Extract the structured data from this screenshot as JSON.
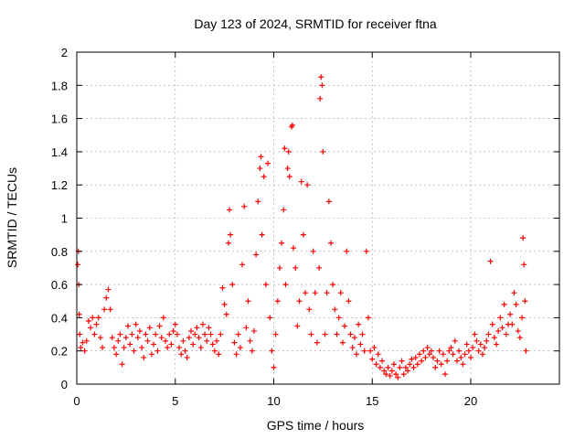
{
  "chart_data": {
    "type": "scatter",
    "title": "Day 123 of 2024, SRMTID for receiver ftna",
    "xlabel": "GPS time / hours",
    "ylabel": "SRMTID / TECUs",
    "xlim": [
      0,
      24.5
    ],
    "ylim": [
      0,
      2
    ],
    "xticks": [
      0,
      5,
      10,
      15,
      20
    ],
    "yticks": [
      0,
      0.2,
      0.4,
      0.6,
      0.8,
      1,
      1.2,
      1.4,
      1.6,
      1.8,
      2
    ],
    "ytick_labels": [
      "0",
      "0.2",
      "0.4",
      "0.6",
      "0.8",
      "1",
      "1.2",
      "1.4",
      "1.6",
      "1.8",
      "2"
    ],
    "grid": true,
    "marker": "+",
    "color": "#ff0000",
    "series": [
      {
        "name": "SRMTID",
        "points": [
          [
            0.05,
            0.72
          ],
          [
            0.08,
            0.8
          ],
          [
            0.1,
            0.6
          ],
          [
            0.12,
            0.42
          ],
          [
            0.15,
            0.3
          ],
          [
            0.2,
            0.22
          ],
          [
            0.3,
            0.25
          ],
          [
            0.4,
            0.2
          ],
          [
            0.5,
            0.26
          ],
          [
            0.6,
            0.38
          ],
          [
            0.7,
            0.34
          ],
          [
            0.8,
            0.4
          ],
          [
            0.9,
            0.3
          ],
          [
            1.0,
            0.36
          ],
          [
            1.1,
            0.4
          ],
          [
            1.2,
            0.28
          ],
          [
            1.3,
            0.22
          ],
          [
            1.4,
            0.45
          ],
          [
            1.5,
            0.52
          ],
          [
            1.6,
            0.57
          ],
          [
            1.7,
            0.45
          ],
          [
            1.8,
            0.28
          ],
          [
            1.9,
            0.22
          ],
          [
            2.0,
            0.18
          ],
          [
            2.1,
            0.26
          ],
          [
            2.2,
            0.3
          ],
          [
            2.3,
            0.12
          ],
          [
            2.4,
            0.22
          ],
          [
            2.5,
            0.28
          ],
          [
            2.6,
            0.35
          ],
          [
            2.7,
            0.24
          ],
          [
            2.8,
            0.3
          ],
          [
            2.9,
            0.2
          ],
          [
            3.0,
            0.36
          ],
          [
            3.1,
            0.28
          ],
          [
            3.2,
            0.32
          ],
          [
            3.3,
            0.22
          ],
          [
            3.4,
            0.16
          ],
          [
            3.5,
            0.3
          ],
          [
            3.6,
            0.26
          ],
          [
            3.7,
            0.34
          ],
          [
            3.8,
            0.18
          ],
          [
            3.9,
            0.24
          ],
          [
            4.0,
            0.3
          ],
          [
            4.1,
            0.2
          ],
          [
            4.2,
            0.35
          ],
          [
            4.3,
            0.28
          ],
          [
            4.4,
            0.4
          ],
          [
            4.5,
            0.26
          ],
          [
            4.6,
            0.22
          ],
          [
            4.7,
            0.3
          ],
          [
            4.8,
            0.24
          ],
          [
            4.9,
            0.32
          ],
          [
            5.0,
            0.36
          ],
          [
            5.1,
            0.3
          ],
          [
            5.2,
            0.22
          ],
          [
            5.3,
            0.18
          ],
          [
            5.4,
            0.26
          ],
          [
            5.5,
            0.2
          ],
          [
            5.6,
            0.16
          ],
          [
            5.7,
            0.28
          ],
          [
            5.8,
            0.32
          ],
          [
            5.9,
            0.24
          ],
          [
            6.0,
            0.3
          ],
          [
            6.1,
            0.34
          ],
          [
            6.2,
            0.28
          ],
          [
            6.3,
            0.22
          ],
          [
            6.4,
            0.36
          ],
          [
            6.5,
            0.3
          ],
          [
            6.6,
            0.26
          ],
          [
            6.7,
            0.34
          ],
          [
            6.8,
            0.3
          ],
          [
            6.9,
            0.24
          ],
          [
            7.0,
            0.2
          ],
          [
            7.1,
            0.26
          ],
          [
            7.2,
            0.18
          ],
          [
            7.3,
            0.3
          ],
          [
            7.4,
            0.58
          ],
          [
            7.5,
            0.48
          ],
          [
            7.6,
            0.42
          ],
          [
            7.7,
            0.85
          ],
          [
            7.75,
            1.05
          ],
          [
            7.8,
            0.9
          ],
          [
            7.9,
            0.6
          ],
          [
            8.0,
            0.25
          ],
          [
            8.1,
            0.18
          ],
          [
            8.2,
            0.3
          ],
          [
            8.3,
            0.22
          ],
          [
            8.4,
            0.72
          ],
          [
            8.5,
            1.07
          ],
          [
            8.6,
            0.34
          ],
          [
            8.7,
            0.5
          ],
          [
            8.8,
            0.26
          ],
          [
            8.9,
            0.2
          ],
          [
            9.0,
            0.32
          ],
          [
            9.1,
            0.78
          ],
          [
            9.2,
            1.1
          ],
          [
            9.3,
            1.3
          ],
          [
            9.35,
            1.37
          ],
          [
            9.4,
            0.9
          ],
          [
            9.5,
            1.25
          ],
          [
            9.6,
            0.6
          ],
          [
            9.7,
            1.33
          ],
          [
            9.8,
            0.4
          ],
          [
            9.9,
            0.2
          ],
          [
            10.0,
            0.1
          ],
          [
            10.1,
            0.3
          ],
          [
            10.2,
            0.5
          ],
          [
            10.3,
            0.7
          ],
          [
            10.4,
            0.85
          ],
          [
            10.5,
            1.05
          ],
          [
            10.55,
            1.42
          ],
          [
            10.6,
            0.6
          ],
          [
            10.7,
            1.3
          ],
          [
            10.75,
            1.4
          ],
          [
            10.8,
            1.25
          ],
          [
            10.9,
            1.55
          ],
          [
            10.95,
            1.56
          ],
          [
            11.0,
            0.82
          ],
          [
            11.1,
            0.7
          ],
          [
            11.2,
            0.35
          ],
          [
            11.3,
            0.5
          ],
          [
            11.4,
            1.22
          ],
          [
            11.5,
            0.9
          ],
          [
            11.6,
            0.55
          ],
          [
            11.7,
            1.2
          ],
          [
            11.8,
            0.45
          ],
          [
            11.9,
            0.3
          ],
          [
            12.0,
            0.8
          ],
          [
            12.1,
            0.55
          ],
          [
            12.2,
            0.25
          ],
          [
            12.3,
            0.7
          ],
          [
            12.35,
            1.72
          ],
          [
            12.4,
            1.85
          ],
          [
            12.45,
            1.8
          ],
          [
            12.5,
            1.4
          ],
          [
            12.6,
            0.3
          ],
          [
            12.7,
            0.55
          ],
          [
            12.8,
            1.1
          ],
          [
            12.9,
            0.85
          ],
          [
            13.0,
            0.6
          ],
          [
            13.1,
            0.45
          ],
          [
            13.2,
            0.3
          ],
          [
            13.3,
            0.4
          ],
          [
            13.4,
            0.55
          ],
          [
            13.5,
            0.25
          ],
          [
            13.6,
            0.35
          ],
          [
            13.7,
            0.8
          ],
          [
            13.8,
            0.5
          ],
          [
            13.9,
            0.3
          ],
          [
            14.0,
            0.22
          ],
          [
            14.1,
            0.28
          ],
          [
            14.2,
            0.18
          ],
          [
            14.3,
            0.36
          ],
          [
            14.4,
            0.24
          ],
          [
            14.5,
            0.3
          ],
          [
            14.6,
            0.2
          ],
          [
            14.7,
            0.8
          ],
          [
            14.8,
            0.4
          ],
          [
            14.9,
            0.2
          ],
          [
            15.0,
            0.15
          ],
          [
            15.1,
            0.22
          ],
          [
            15.2,
            0.12
          ],
          [
            15.3,
            0.18
          ],
          [
            15.4,
            0.1
          ],
          [
            15.5,
            0.14
          ],
          [
            15.6,
            0.08
          ],
          [
            15.7,
            0.06
          ],
          [
            15.8,
            0.1
          ],
          [
            15.9,
            0.05
          ],
          [
            16.0,
            0.08
          ],
          [
            16.1,
            0.12
          ],
          [
            16.2,
            0.06
          ],
          [
            16.3,
            0.04
          ],
          [
            16.4,
            0.1
          ],
          [
            16.5,
            0.14
          ],
          [
            16.6,
            0.06
          ],
          [
            16.7,
            0.1
          ],
          [
            16.8,
            0.08
          ],
          [
            16.9,
            0.12
          ],
          [
            17.0,
            0.15
          ],
          [
            17.1,
            0.1
          ],
          [
            17.2,
            0.16
          ],
          [
            17.3,
            0.12
          ],
          [
            17.4,
            0.18
          ],
          [
            17.5,
            0.14
          ],
          [
            17.6,
            0.2
          ],
          [
            17.7,
            0.16
          ],
          [
            17.8,
            0.22
          ],
          [
            17.9,
            0.18
          ],
          [
            18.0,
            0.2
          ],
          [
            18.1,
            0.16
          ],
          [
            18.2,
            0.1
          ],
          [
            18.3,
            0.14
          ],
          [
            18.4,
            0.2
          ],
          [
            18.5,
            0.12
          ],
          [
            18.6,
            0.18
          ],
          [
            18.7,
            0.06
          ],
          [
            18.8,
            0.14
          ],
          [
            18.9,
            0.2
          ],
          [
            19.0,
            0.22
          ],
          [
            19.1,
            0.18
          ],
          [
            19.2,
            0.26
          ],
          [
            19.3,
            0.14
          ],
          [
            19.4,
            0.2
          ],
          [
            19.5,
            0.16
          ],
          [
            19.6,
            0.12
          ],
          [
            19.7,
            0.18
          ],
          [
            19.8,
            0.24
          ],
          [
            19.9,
            0.2
          ],
          [
            20.0,
            0.16
          ],
          [
            20.1,
            0.22
          ],
          [
            20.2,
            0.3
          ],
          [
            20.3,
            0.26
          ],
          [
            20.4,
            0.2
          ],
          [
            20.5,
            0.24
          ],
          [
            20.6,
            0.18
          ],
          [
            20.7,
            0.22
          ],
          [
            20.8,
            0.26
          ],
          [
            20.9,
            0.3
          ],
          [
            21.0,
            0.74
          ],
          [
            21.1,
            0.36
          ],
          [
            21.2,
            0.28
          ],
          [
            21.3,
            0.24
          ],
          [
            21.4,
            0.32
          ],
          [
            21.5,
            0.4
          ],
          [
            21.6,
            0.34
          ],
          [
            21.7,
            0.48
          ],
          [
            21.8,
            0.3
          ],
          [
            21.9,
            0.36
          ],
          [
            22.0,
            0.42
          ],
          [
            22.1,
            0.36
          ],
          [
            22.2,
            0.55
          ],
          [
            22.3,
            0.48
          ],
          [
            22.4,
            0.32
          ],
          [
            22.5,
            0.28
          ],
          [
            22.6,
            0.4
          ],
          [
            22.65,
            0.88
          ],
          [
            22.7,
            0.72
          ],
          [
            22.75,
            0.5
          ],
          [
            22.8,
            0.2
          ]
        ]
      }
    ]
  }
}
